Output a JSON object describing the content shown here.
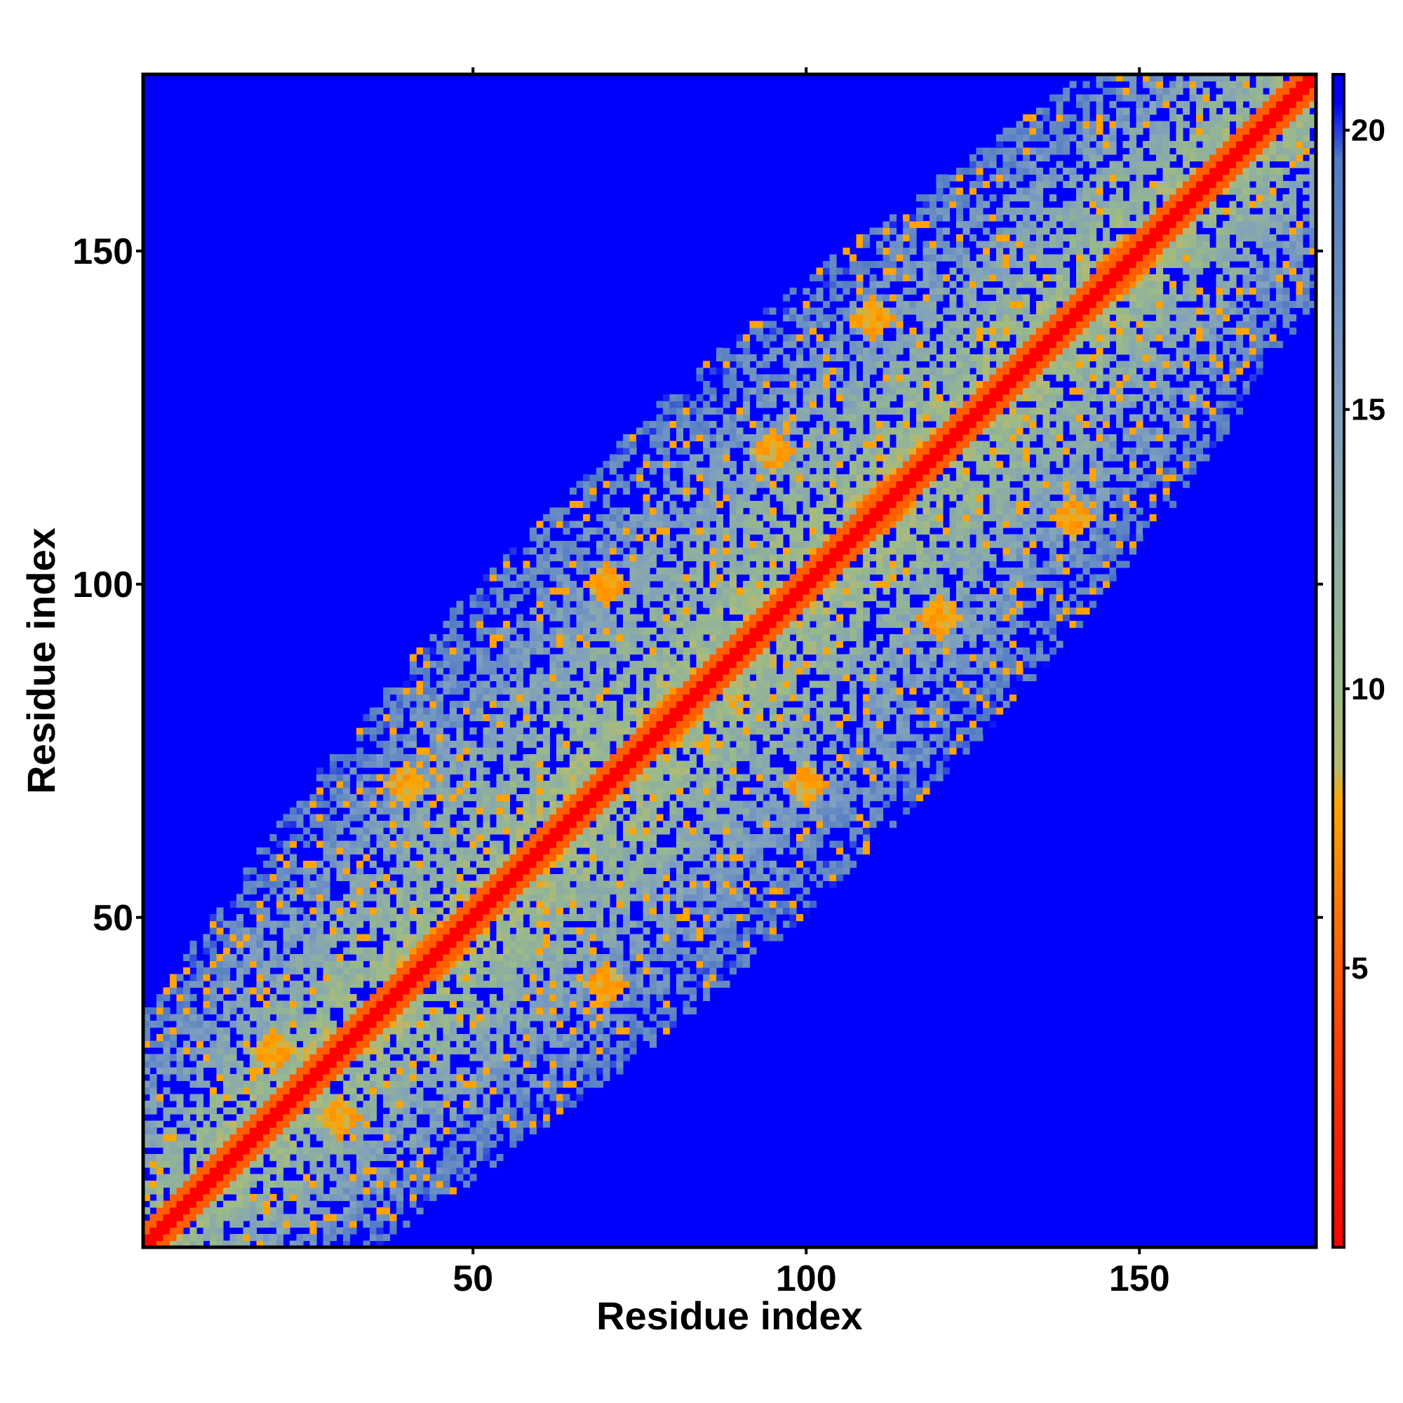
{
  "chart_data": {
    "type": "heatmap",
    "title": "",
    "xlabel": "Residue index",
    "ylabel": "Residue index",
    "xlim": [
      1,
      176
    ],
    "ylim": [
      1,
      176
    ],
    "x_ticks": [
      50,
      100,
      150
    ],
    "y_ticks": [
      50,
      100,
      150
    ],
    "grid": false,
    "colorbar": {
      "placement": "right",
      "range": [
        0,
        21
      ],
      "ticks": [
        5,
        10,
        15,
        20
      ],
      "stops": [
        {
          "value": 0,
          "color": "#ff0000"
        },
        {
          "value": 4,
          "color": "#ff4500"
        },
        {
          "value": 8,
          "color": "#ffa500"
        },
        {
          "value": 8.6,
          "color": "#b8b870"
        },
        {
          "value": 10,
          "color": "#9aba8a"
        },
        {
          "value": 15,
          "color": "#7f9fbf"
        },
        {
          "value": 19.5,
          "color": "#4f79c6"
        },
        {
          "value": 20.5,
          "color": "#0000ff"
        },
        {
          "value": 21,
          "color": "#0000ff"
        }
      ]
    },
    "description_of_values": "Pairwise residue distance map (symmetric); values near 0 on the diagonal, saturating at the maximum (blue) for distant pairs.",
    "features": {
      "diagonal_value": 0,
      "near_diagonal_band_value": 5,
      "cutoff_value": 21,
      "contact_clusters": [
        {
          "center": [
            45,
            45
          ],
          "spread": 4,
          "value": 6
        },
        {
          "center": [
            80,
            80
          ],
          "spread": 4,
          "value": 6
        },
        {
          "center": [
            112,
            112
          ],
          "spread": 4,
          "value": 6
        },
        {
          "center": [
            148,
            148
          ],
          "spread": 4,
          "value": 6
        },
        {
          "center": [
            70,
            40
          ],
          "spread": 3,
          "value": 7
        },
        {
          "center": [
            100,
            70
          ],
          "spread": 3,
          "value": 7
        },
        {
          "center": [
            140,
            110
          ],
          "spread": 3,
          "value": 7
        },
        {
          "center": [
            120,
            95
          ],
          "spread": 3,
          "value": 7
        },
        {
          "center": [
            30,
            20
          ],
          "spread": 3,
          "value": 7
        }
      ]
    }
  }
}
